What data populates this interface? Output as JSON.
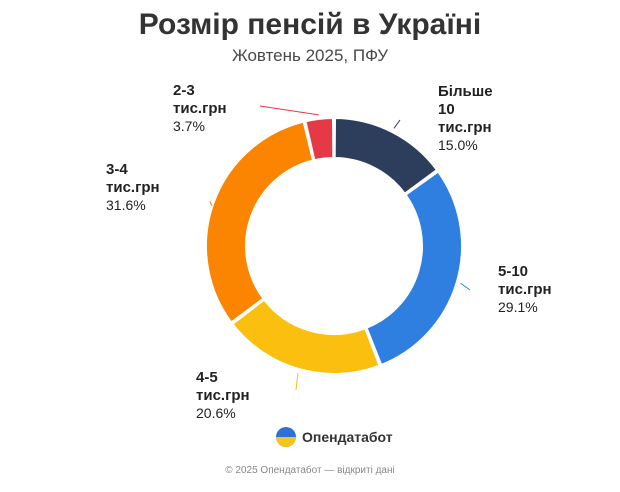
{
  "header": {
    "title": "Розмір пенсій в Україні",
    "subtitle": "Жовтень 2025, ПФУ"
  },
  "brand": {
    "name": "Опендатабот",
    "logo_icon": "ukraine-flag-circle-icon"
  },
  "footer": {
    "text": "© 2025 Опендатабот — відкриті дані"
  },
  "chart_data": {
    "type": "pie",
    "donut": true,
    "categories": [
      "Більше 10 тис.грн",
      "5-10 тис.грн",
      "4-5 тис.грн",
      "3-4 тис.грн",
      "2-3 тис.грн"
    ],
    "values": [
      15.0,
      29.1,
      20.6,
      31.6,
      3.7
    ],
    "value_labels": [
      "15.0%",
      "29.1%",
      "20.6%",
      "31.6%",
      "3.7%"
    ],
    "label_lines": [
      [
        "Більше",
        "10",
        "тис.грн"
      ],
      [
        "5-10",
        "тис.грн"
      ],
      [
        "4-5",
        "тис.грн"
      ],
      [
        "3-4",
        "тис.грн"
      ],
      [
        "2-3",
        "тис.грн"
      ]
    ],
    "colors": [
      "#2d3e5c",
      "#2f7fe0",
      "#fbbf0f",
      "#fb8500",
      "#e63946"
    ],
    "title": "Розмір пенсій в Україні",
    "subtitle": "Жовтень 2025, ПФУ"
  }
}
